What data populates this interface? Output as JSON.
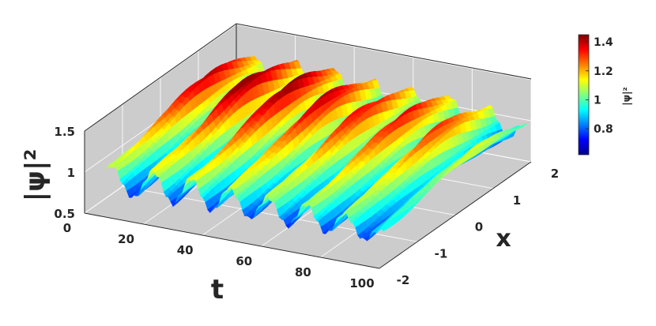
{
  "chart_data": {
    "type": "surface",
    "xlabel": "t",
    "ylabel": "x",
    "zlabel": "|ψ|²",
    "colorbar_label": "|ψ|²",
    "xlim": [
      0,
      100
    ],
    "ylim": [
      -2,
      2
    ],
    "zlim": [
      0.5,
      1.5
    ],
    "xticks": [
      "0",
      "20",
      "40",
      "60",
      "80",
      "100"
    ],
    "yticks": [
      "-2",
      "-1",
      "0",
      "1",
      "2"
    ],
    "zticks": [
      "0.5",
      "1",
      "1.5"
    ],
    "colorbar_ticks": [
      "0.8",
      "1",
      "1.2",
      "1.4"
    ],
    "colorbar_range": [
      0.62,
      1.45
    ],
    "colormap": "jet",
    "grid": true,
    "pane_color": "#cccccc",
    "surface": {
      "description_free": true,
      "peak_t": [
        8,
        22,
        35,
        48,
        61,
        74,
        87,
        99
      ],
      "peak_heights": [
        1.4,
        1.45,
        1.45,
        1.4,
        1.35,
        1.35,
        1.3,
        1.1
      ],
      "min_height": 0.62
    }
  }
}
